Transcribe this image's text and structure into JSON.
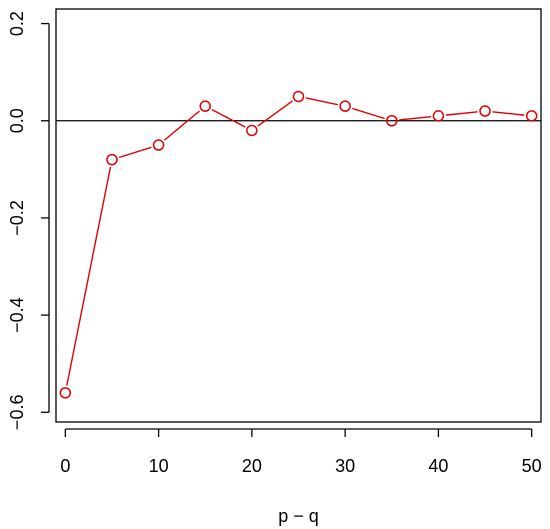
{
  "chart_data": {
    "type": "line",
    "title": "",
    "xlabel": "p − q",
    "ylabel": "",
    "xlim": [
      -1,
      51
    ],
    "ylim": [
      -0.62,
      0.23
    ],
    "x_ticks": [
      0,
      10,
      20,
      30,
      40,
      50
    ],
    "x_tick_labels": [
      "0",
      "10",
      "20",
      "30",
      "40",
      "50"
    ],
    "y_ticks": [
      -0.6,
      -0.4,
      -0.2,
      0.0,
      0.2
    ],
    "y_tick_labels": [
      "−0.6",
      "−0.4",
      "−0.2",
      "0.0",
      "0.2"
    ],
    "reference_line_y": 0.0,
    "grid": false,
    "series": [
      {
        "color": "#e00000",
        "x": [
          0,
          5,
          10,
          15,
          20,
          25,
          30,
          35,
          40,
          45,
          50
        ],
        "values": [
          -0.56,
          -0.08,
          -0.05,
          0.03,
          -0.02,
          0.05,
          0.03,
          0.0,
          0.01,
          0.02,
          0.01
        ]
      }
    ]
  }
}
